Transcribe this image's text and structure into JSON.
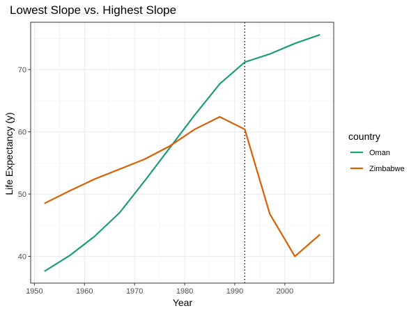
{
  "chart_data": {
    "type": "line",
    "title": "Lowest Slope vs. Highest Slope",
    "xlabel": "Year",
    "ylabel": "Life Expectancy (y)",
    "xlim": [
      1949.25,
      2009.75
    ],
    "ylim": [
      35.7,
      77.6
    ],
    "x_ticks": [
      1950,
      1960,
      1970,
      1980,
      1990,
      2000
    ],
    "y_ticks": [
      40,
      50,
      60,
      70
    ],
    "grid": true,
    "legend": {
      "title": "country",
      "placement": "right"
    },
    "reference_line": {
      "x": 1992,
      "style": "dotted",
      "color": "#000000"
    },
    "x": [
      1952,
      1957,
      1962,
      1967,
      1972,
      1977,
      1982,
      1987,
      1992,
      1997,
      2002,
      2007
    ],
    "series": [
      {
        "name": "Oman",
        "color": "#1b9e77",
        "values": [
          37.6,
          40.1,
          43.2,
          47.0,
          52.1,
          57.4,
          62.7,
          67.7,
          71.2,
          72.5,
          74.2,
          75.6
        ]
      },
      {
        "name": "Zimbabwe",
        "color": "#d95f02",
        "values": [
          48.5,
          50.5,
          52.4,
          54.0,
          55.6,
          57.7,
          60.4,
          62.4,
          60.4,
          46.8,
          40.0,
          43.5
        ]
      }
    ]
  }
}
